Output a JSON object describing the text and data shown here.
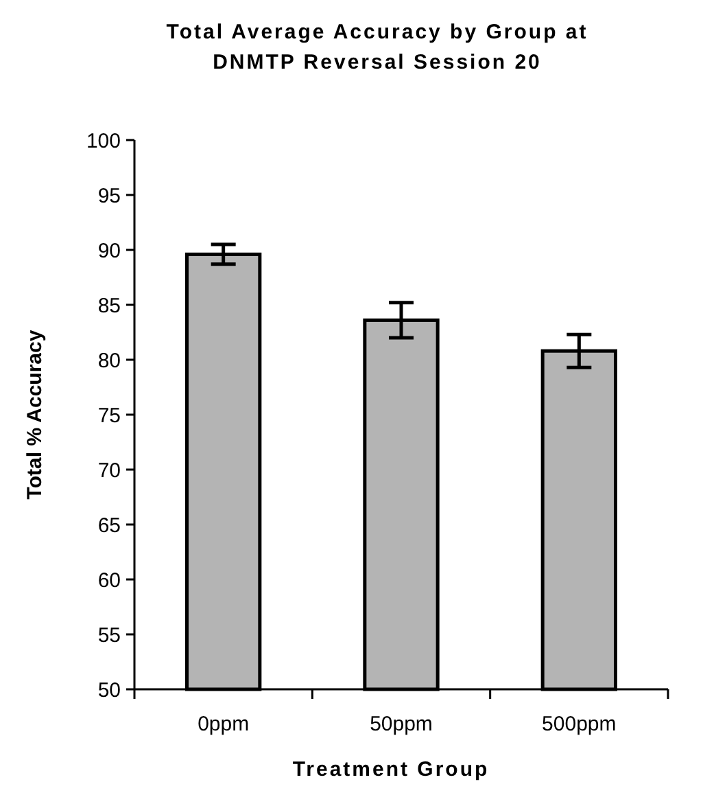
{
  "chart_data": {
    "type": "bar",
    "title": "Total Average Accuracy by Group at DNMTP Reversal Session 20",
    "xlabel": "Treatment Group",
    "ylabel": "Total % Accuracy",
    "categories": [
      "0ppm",
      "50ppm",
      "500ppm"
    ],
    "values": [
      89.6,
      83.6,
      80.8
    ],
    "errors": [
      0.9,
      1.6,
      1.5
    ],
    "color": "#b4b4b4",
    "ylim": [
      50,
      100
    ],
    "yticks": [
      50,
      55,
      60,
      65,
      70,
      75,
      80,
      85,
      90,
      95,
      100
    ],
    "grid": false
  }
}
